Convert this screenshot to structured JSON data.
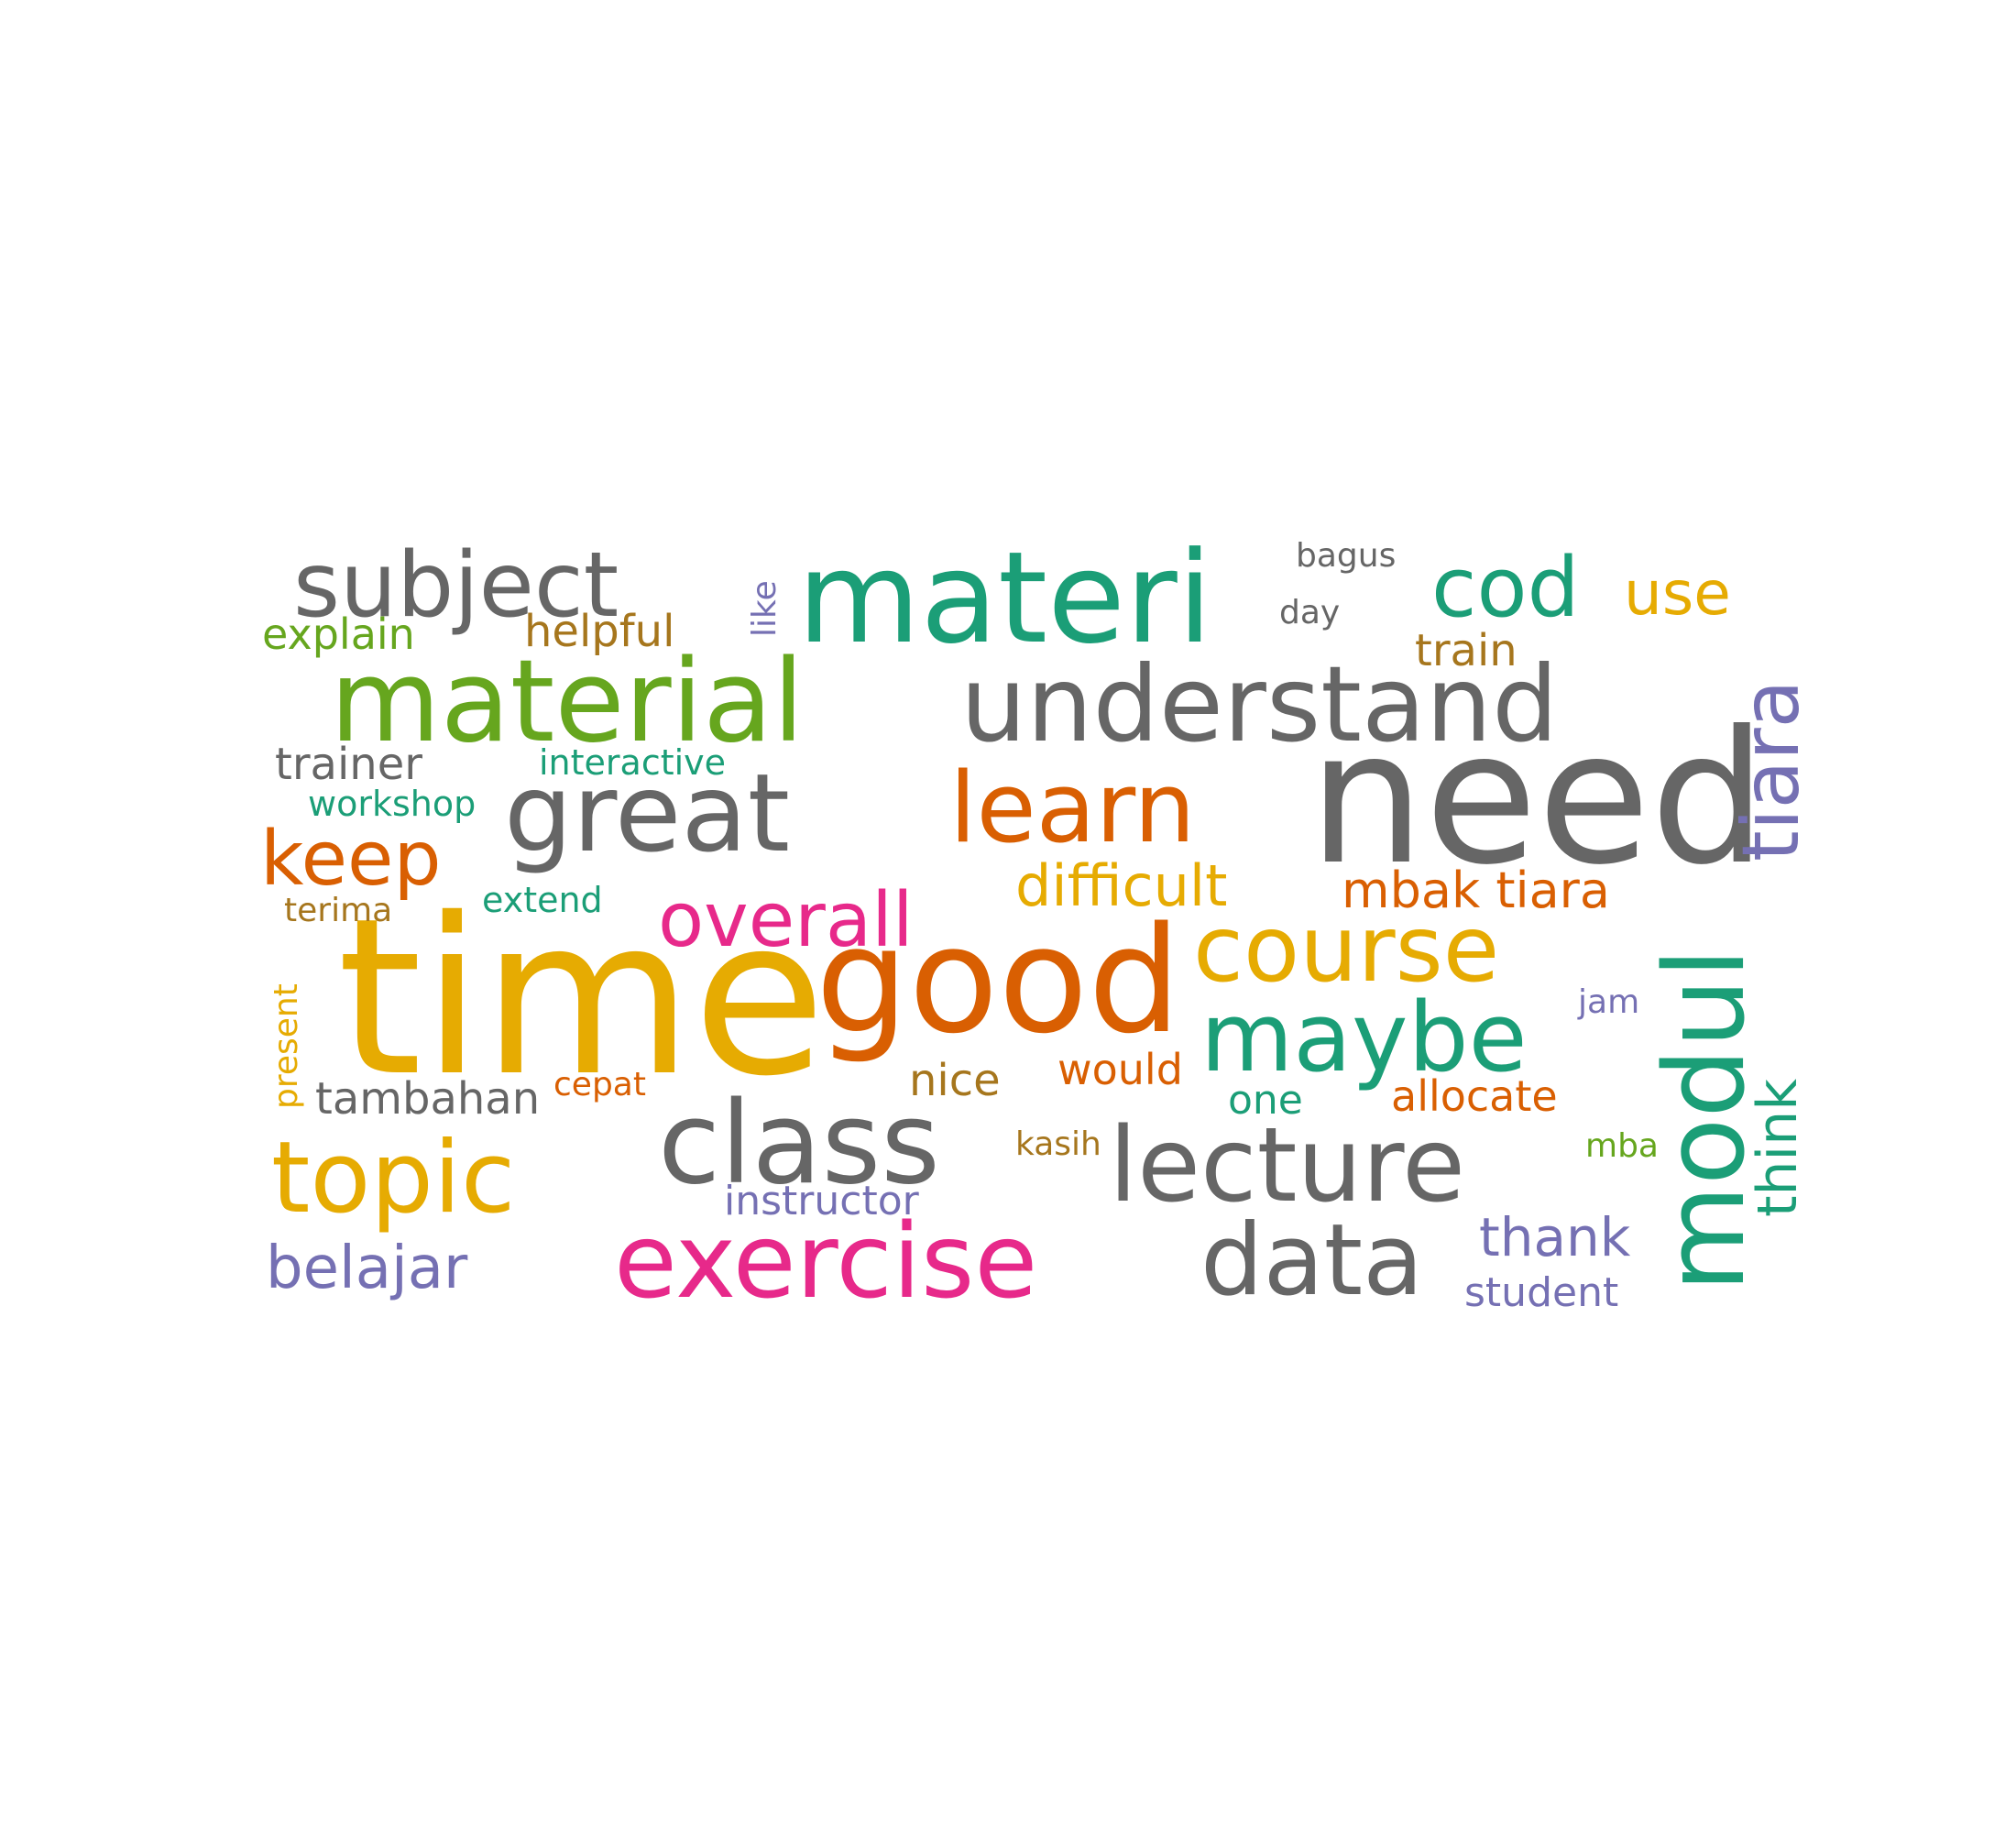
{
  "palette": {
    "gray": "#666666",
    "green": "#1b9e77",
    "orange": "#d95f02",
    "purple": "#7570b3",
    "pink": "#e7298a",
    "lime": "#66a61e",
    "gold": "#e6ab02",
    "brown": "#a6761d"
  },
  "words": [
    {
      "text": "time",
      "color": "gold",
      "weight": 1.0
    },
    {
      "text": "need",
      "color": "gray",
      "weight": 0.95
    },
    {
      "text": "good",
      "color": "orange",
      "weight": 0.85
    },
    {
      "text": "materi",
      "color": "green",
      "weight": 0.72
    },
    {
      "text": "exercise",
      "color": "pink",
      "weight": 0.66
    },
    {
      "text": "material",
      "color": "lime",
      "weight": 0.68
    },
    {
      "text": "class",
      "color": "gray",
      "weight": 0.68
    },
    {
      "text": "modul",
      "color": "green",
      "weight": 0.64
    },
    {
      "text": "great",
      "color": "gray",
      "weight": 0.66
    },
    {
      "text": "understand",
      "color": "gray",
      "weight": 0.62
    },
    {
      "text": "lecture",
      "color": "gray",
      "weight": 0.62
    },
    {
      "text": "learn",
      "color": "orange",
      "weight": 0.6
    },
    {
      "text": "data",
      "color": "gray",
      "weight": 0.6
    },
    {
      "text": "maybe",
      "color": "green",
      "weight": 0.58
    },
    {
      "text": "topic",
      "color": "gold",
      "weight": 0.58
    },
    {
      "text": "subject",
      "color": "gray",
      "weight": 0.56
    },
    {
      "text": "course",
      "color": "gold",
      "weight": 0.56
    },
    {
      "text": "cod",
      "color": "green",
      "weight": 0.5
    },
    {
      "text": "tiara",
      "color": "purple",
      "weight": 0.5
    },
    {
      "text": "overall",
      "color": "pink",
      "weight": 0.46
    },
    {
      "text": "keep",
      "color": "orange",
      "weight": 0.46
    },
    {
      "text": "use",
      "color": "gold",
      "weight": 0.4
    },
    {
      "text": "belajar",
      "color": "purple",
      "weight": 0.4
    },
    {
      "text": "difficult",
      "color": "gold",
      "weight": 0.38
    },
    {
      "text": "think",
      "color": "green",
      "weight": 0.38
    },
    {
      "text": "thank",
      "color": "purple",
      "weight": 0.36
    },
    {
      "text": "mbak tiara",
      "color": "orange",
      "weight": 0.34
    },
    {
      "text": "train",
      "color": "brown",
      "weight": 0.3
    },
    {
      "text": "trainer",
      "color": "gray",
      "weight": 0.3
    },
    {
      "text": "tambahan",
      "color": "gray",
      "weight": 0.3
    },
    {
      "text": "helpful",
      "color": "brown",
      "weight": 0.3
    },
    {
      "text": "explain",
      "color": "lime",
      "weight": 0.3
    },
    {
      "text": "nice",
      "color": "brown",
      "weight": 0.3
    },
    {
      "text": "would",
      "color": "orange",
      "weight": 0.3
    },
    {
      "text": "allocate",
      "color": "orange",
      "weight": 0.3
    },
    {
      "text": "instructor",
      "color": "purple",
      "weight": 0.28
    },
    {
      "text": "student",
      "color": "purple",
      "weight": 0.28
    },
    {
      "text": "one",
      "color": "green",
      "weight": 0.28
    },
    {
      "text": "interactive",
      "color": "green",
      "weight": 0.26
    },
    {
      "text": "workshop",
      "color": "green",
      "weight": 0.24
    },
    {
      "text": "day",
      "color": "gray",
      "weight": 0.24
    },
    {
      "text": "bagus",
      "color": "gray",
      "weight": 0.24
    },
    {
      "text": "like",
      "color": "purple",
      "weight": 0.24
    },
    {
      "text": "extend",
      "color": "green",
      "weight": 0.24
    },
    {
      "text": "terima",
      "color": "brown",
      "weight": 0.24
    },
    {
      "text": "present",
      "color": "gold",
      "weight": 0.24
    },
    {
      "text": "cepat",
      "color": "orange",
      "weight": 0.24
    },
    {
      "text": "kasih",
      "color": "brown",
      "weight": 0.24
    },
    {
      "text": "jam",
      "color": "purple",
      "weight": 0.24
    },
    {
      "text": "mba",
      "color": "lime",
      "weight": 0.24
    }
  ]
}
